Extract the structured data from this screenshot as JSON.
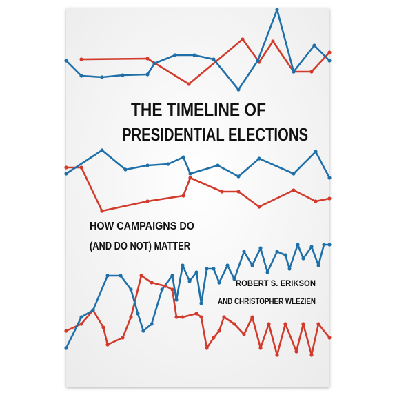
{
  "cover": {
    "title": [
      "THE TIMELINE OF",
      "PRESIDENTIAL ELECTIONS"
    ],
    "subtitle": [
      "HOW CAMPAIGNS DO",
      "(AND DO NOT) MATTER"
    ],
    "authors": [
      "ROBERT S. ERIKSON",
      "AND CHRISTOPHER WLEZIEN"
    ]
  }
}
